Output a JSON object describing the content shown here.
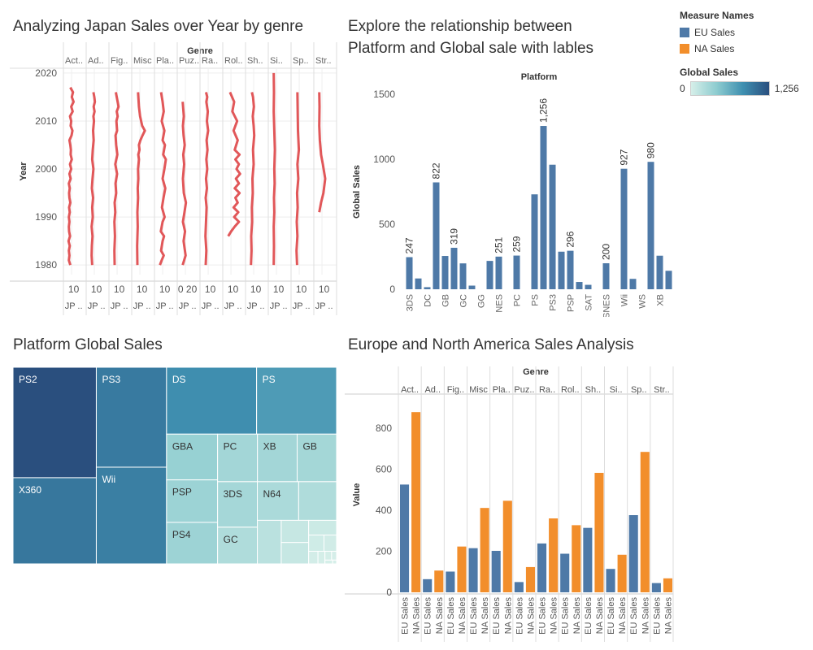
{
  "titles": {
    "japan": "Analyzing Japan Sales over Year by genre",
    "platform_line1": "Explore the relationship between",
    "platform_line2": "Platform and  Global sale with lables",
    "treemap": "Platform Global Sales",
    "eu_na": "Europe and North America Sales Analysis"
  },
  "legend": {
    "measure_title": "Measure Names",
    "items": [
      {
        "label": "EU Sales",
        "color": "#4e79a7"
      },
      {
        "label": "NA Sales",
        "color": "#f28e2b"
      }
    ],
    "color_title": "Global Sales",
    "color_min": "0",
    "color_max": "1,256"
  },
  "chart_data": [
    {
      "id": "japan",
      "type": "line",
      "header": "Genre",
      "ylabel": "Year",
      "ylim": [
        1978,
        2021
      ],
      "yticks": [
        1980,
        1990,
        2000,
        2010,
        2020
      ],
      "line_color": "#e15759",
      "panels": [
        {
          "genre": "Act..",
          "axis": "10",
          "foot": "JP ..",
          "x": [
            1.5,
            1.0,
            1.2,
            1.0,
            1.3,
            0.9,
            1.4,
            1.1,
            1.0,
            1.2,
            1.0,
            1.3,
            1.1,
            1.5,
            1.2,
            1.1,
            1.3,
            1.0,
            1.6,
            1.2,
            1.8,
            1.4,
            2.0,
            1.6,
            1.7,
            1.5,
            1.2,
            1.9,
            2.2,
            1.6,
            1.8,
            1.4,
            2.3,
            1.8,
            2.6,
            2.0,
            2.4,
            1.5
          ],
          "y": [
            1980,
            1981,
            1982,
            1983,
            1984,
            1985,
            1986,
            1987,
            1988,
            1989,
            1990,
            1991,
            1992,
            1993,
            1994,
            1995,
            1996,
            1997,
            1998,
            1999,
            2000,
            2001,
            2002,
            2003,
            2004,
            2005,
            2006,
            2007,
            2008,
            2009,
            2010,
            2011,
            2012,
            2013,
            2014,
            2015,
            2016,
            2017
          ]
        },
        {
          "genre": "Ad..",
          "axis": "10",
          "foot": "JP ..",
          "x": [
            1.2,
            1.0,
            1.1,
            1.3,
            1.0,
            1.4,
            1.2,
            1.5,
            1.1,
            1.3,
            1.6,
            1.2,
            1.4,
            1.7,
            1.5,
            1.8,
            1.6,
            2.0,
            1.7,
            2.1,
            1.9,
            1.6
          ],
          "y": [
            1980,
            1982,
            1984,
            1986,
            1988,
            1990,
            1992,
            1994,
            1996,
            1998,
            2000,
            2002,
            2004,
            2006,
            2008,
            2010,
            2011,
            2012,
            2013,
            2014,
            2015,
            2016
          ]
        },
        {
          "genre": "Fig..",
          "axis": "10",
          "foot": "JP ..",
          "x": [
            1.1,
            1.0,
            1.2,
            1.0,
            1.3,
            1.1,
            1.6,
            1.4,
            1.9,
            1.3,
            2.0,
            1.6,
            1.4,
            1.9,
            1.7,
            2.1,
            1.8,
            2.4,
            2.1,
            1.5
          ],
          "y": [
            1980,
            1983,
            1986,
            1989,
            1991,
            1993,
            1995,
            1997,
            1999,
            2001,
            2003,
            2005,
            2007,
            2008,
            2010,
            2011,
            2012,
            2013,
            2014,
            2016
          ]
        },
        {
          "genre": "Misc",
          "axis": "10",
          "foot": "JP ..",
          "x": [
            1.1,
            1.0,
            1.2,
            1.1,
            1.3,
            1.2,
            1.4,
            1.3,
            1.6,
            1.4,
            1.8,
            1.6,
            2.1,
            2.8,
            3.6,
            2.7,
            2.0,
            1.6,
            1.3
          ],
          "y": [
            1980,
            1984,
            1988,
            1991,
            1994,
            1996,
            1998,
            2000,
            2002,
            2003,
            2004,
            2005,
            2006,
            2007,
            2008,
            2009,
            2011,
            2013,
            2016
          ]
        },
        {
          "genre": "Pla..",
          "axis": "10",
          "foot": "JP ..",
          "x": [
            1.0,
            1.6,
            2.3,
            1.4,
            1.9,
            2.4,
            1.3,
            1.9,
            2.6,
            1.7,
            2.2,
            2.8,
            1.9,
            2.5,
            3.0,
            2.1,
            2.7,
            1.9,
            2.5,
            1.6,
            2.3,
            1.9,
            1.4
          ],
          "y": [
            1980,
            1981,
            1982,
            1983,
            1985,
            1986,
            1987,
            1989,
            1990,
            1992,
            1994,
            1996,
            1998,
            2000,
            2002,
            2003,
            2005,
            2006,
            2008,
            2010,
            2012,
            2014,
            2016
          ]
        },
        {
          "genre": "Puz..",
          "axis": "0 20",
          "foot": "JP ..",
          "x": [
            1.0,
            2.0,
            1.3,
            1.8,
            1.1,
            1.6,
            2.1,
            1.4,
            1.1,
            1.5,
            1.2,
            1.7,
            1.3,
            1.1,
            1.4,
            1.0
          ],
          "y": [
            1980,
            1982,
            1985,
            1987,
            1989,
            1991,
            1993,
            1995,
            1998,
            2001,
            2003,
            2005,
            2007,
            2009,
            2011,
            2014
          ]
        },
        {
          "genre": "Ra..",
          "axis": "10",
          "foot": "JP ..",
          "x": [
            1.1,
            1.3,
            1.0,
            1.2,
            1.4,
            1.1,
            1.5,
            1.2,
            1.6,
            1.3,
            1.7,
            1.4,
            1.9,
            1.5,
            1.8,
            1.3,
            1.6,
            1.2
          ],
          "y": [
            1980,
            1983,
            1986,
            1989,
            1992,
            1994,
            1996,
            1998,
            2000,
            2002,
            2004,
            2006,
            2008,
            2010,
            2012,
            2014,
            2015,
            2016
          ]
        },
        {
          "genre": "Rol..",
          "axis": "10",
          "foot": "JP ..",
          "x": [
            1.0,
            2.0,
            3.2,
            4.6,
            3.0,
            4.4,
            2.8,
            4.2,
            3.4,
            4.8,
            3.2,
            4.6,
            3.6,
            5.0,
            3.8,
            4.6,
            3.4,
            4.8,
            3.2,
            4.2,
            2.8,
            4.0,
            2.4,
            3.0,
            1.6
          ],
          "y": [
            1986,
            1987,
            1988,
            1989,
            1990,
            1991,
            1992,
            1993,
            1994,
            1995,
            1996,
            1997,
            1998,
            1999,
            2000,
            2001,
            2002,
            2003,
            2004,
            2006,
            2008,
            2010,
            2012,
            2014,
            2016
          ]
        },
        {
          "genre": "Sh..",
          "axis": "10",
          "foot": "JP ..",
          "x": [
            1.0,
            1.2,
            1.1,
            1.4,
            1.3,
            1.6,
            1.5,
            1.9,
            1.7,
            2.1,
            1.9,
            1.6,
            2.0,
            1.7,
            1.3
          ],
          "y": [
            1980,
            1983,
            1986,
            1989,
            1992,
            1995,
            1998,
            2001,
            2004,
            2007,
            2009,
            2011,
            2013,
            2015,
            2016
          ]
        },
        {
          "genre": "Si..",
          "axis": "10",
          "foot": "JP ..",
          "x": [
            1.0,
            1.1,
            1.0,
            1.2,
            1.1,
            1.3,
            1.2,
            1.4,
            1.2,
            1.0,
            1.1,
            1.0
          ],
          "y": [
            1980,
            1984,
            1988,
            1991,
            1994,
            1997,
            2000,
            2004,
            2008,
            2012,
            2016,
            2020
          ]
        },
        {
          "genre": "Sp..",
          "axis": "10",
          "foot": "JP ..",
          "x": [
            1.2,
            1.0,
            1.3,
            1.1,
            1.4,
            1.2,
            1.6,
            1.3,
            1.8,
            1.5,
            1.3
          ],
          "y": [
            1980,
            1983,
            1986,
            1989,
            1992,
            1995,
            1998,
            2001,
            2004,
            2008,
            2016
          ]
        },
        {
          "genre": "Str..",
          "axis": "10",
          "foot": "JP ..",
          "x": [
            1.0,
            1.6,
            2.4,
            3.0,
            2.2,
            1.6,
            1.2,
            1.0,
            1.1,
            1.0
          ],
          "y": [
            1991,
            1993,
            1995,
            1998,
            2001,
            2003,
            2006,
            2009,
            2013,
            2016
          ]
        }
      ]
    },
    {
      "id": "platform",
      "type": "bar",
      "header": "Platform",
      "ylabel": "Global Sales",
      "ylim": [
        0,
        1500
      ],
      "yticks": [
        0,
        500,
        1000,
        1500
      ],
      "bar_color": "#4e79a7",
      "bars": [
        {
          "platform": "3DS",
          "value": 247,
          "show_label": true,
          "label": "247",
          "axis_label": true
        },
        {
          "platform": "",
          "value": 83,
          "show_label": false,
          "label": "",
          "axis_label": false
        },
        {
          "platform": "DC",
          "value": 16,
          "show_label": false,
          "label": "",
          "axis_label": true
        },
        {
          "platform": "",
          "value": 822,
          "show_label": true,
          "label": "822",
          "axis_label": false
        },
        {
          "platform": "GB",
          "value": 256,
          "show_label": false,
          "label": "",
          "axis_label": true
        },
        {
          "platform": "",
          "value": 319,
          "show_label": true,
          "label": "319",
          "axis_label": false
        },
        {
          "platform": "GC",
          "value": 199,
          "show_label": false,
          "label": "",
          "axis_label": true
        },
        {
          "platform": "",
          "value": 28,
          "show_label": false,
          "label": "",
          "axis_label": false
        },
        {
          "platform": "GG",
          "value": 0,
          "show_label": false,
          "label": "",
          "axis_label": true
        },
        {
          "platform": "",
          "value": 218,
          "show_label": false,
          "label": "",
          "axis_label": false
        },
        {
          "platform": "NES",
          "value": 251,
          "show_label": true,
          "label": "251",
          "axis_label": true
        },
        {
          "platform": "",
          "value": 0,
          "show_label": false,
          "label": "",
          "axis_label": false
        },
        {
          "platform": "PC",
          "value": 259,
          "show_label": true,
          "label": "259",
          "axis_label": true
        },
        {
          "platform": "",
          "value": 0,
          "show_label": false,
          "label": "",
          "axis_label": false
        },
        {
          "platform": "PS",
          "value": 730,
          "show_label": false,
          "label": "",
          "axis_label": true
        },
        {
          "platform": "",
          "value": 1256,
          "show_label": true,
          "label": "1,256",
          "axis_label": false
        },
        {
          "platform": "PS3",
          "value": 958,
          "show_label": false,
          "label": "",
          "axis_label": true
        },
        {
          "platform": "",
          "value": 289,
          "show_label": false,
          "label": "",
          "axis_label": false
        },
        {
          "platform": "PSP",
          "value": 296,
          "show_label": true,
          "label": "296",
          "axis_label": true
        },
        {
          "platform": "",
          "value": 56,
          "show_label": false,
          "label": "",
          "axis_label": false
        },
        {
          "platform": "SAT",
          "value": 34,
          "show_label": false,
          "label": "",
          "axis_label": true
        },
        {
          "platform": "",
          "value": 0,
          "show_label": false,
          "label": "",
          "axis_label": false
        },
        {
          "platform": "SNES",
          "value": 200,
          "show_label": true,
          "label": "200",
          "axis_label": true
        },
        {
          "platform": "",
          "value": 0,
          "show_label": false,
          "label": "",
          "axis_label": false
        },
        {
          "platform": "Wii",
          "value": 927,
          "show_label": true,
          "label": "927",
          "axis_label": true
        },
        {
          "platform": "",
          "value": 80,
          "show_label": false,
          "label": "",
          "axis_label": false
        },
        {
          "platform": "WS",
          "value": 0,
          "show_label": false,
          "label": "",
          "axis_label": true
        },
        {
          "platform": "",
          "value": 980,
          "show_label": true,
          "label": "980",
          "axis_label": false
        },
        {
          "platform": "XB",
          "value": 258,
          "show_label": false,
          "label": "",
          "axis_label": true
        },
        {
          "platform": "",
          "value": 142,
          "show_label": false,
          "label": "",
          "axis_label": false
        }
      ]
    },
    {
      "id": "treemap",
      "type": "treemap",
      "tiles": [
        {
          "label": "PS2",
          "value": 1256
        },
        {
          "label": "X360",
          "value": 980
        },
        {
          "label": "PS3",
          "value": 958
        },
        {
          "label": "Wii",
          "value": 927
        },
        {
          "label": "DS",
          "value": 822
        },
        {
          "label": "PS",
          "value": 730
        },
        {
          "label": "GBA",
          "value": 319
        },
        {
          "label": "PSP",
          "value": 296
        },
        {
          "label": "PS4",
          "value": 289
        },
        {
          "label": "PC",
          "value": 259
        },
        {
          "label": "XB",
          "value": 258
        },
        {
          "label": "GB",
          "value": 256
        },
        {
          "label": "3DS",
          "value": 247
        },
        {
          "label": "GC",
          "value": 199
        },
        {
          "label": "N64",
          "value": 218
        },
        {
          "label": "",
          "value": 200
        },
        {
          "label": "",
          "value": 142
        },
        {
          "label": "",
          "value": 83
        },
        {
          "label": "",
          "value": 80
        },
        {
          "label": "",
          "value": 56
        },
        {
          "label": "",
          "value": 34
        },
        {
          "label": "",
          "value": 28
        },
        {
          "label": "",
          "value": 16
        },
        {
          "label": "",
          "value": 12
        },
        {
          "label": "",
          "value": 8
        },
        {
          "label": "",
          "value": 6
        },
        {
          "label": "",
          "value": 4
        },
        {
          "label": "",
          "value": 2
        }
      ]
    },
    {
      "id": "eu_na",
      "type": "bar",
      "header": "Genre",
      "ylabel": "Value",
      "ylim": [
        0,
        950
      ],
      "yticks": [
        0,
        200,
        400,
        600,
        800
      ],
      "categories": [
        "Act..",
        "Ad..",
        "Fig..",
        "Misc",
        "Pla..",
        "Puz..",
        "Ra..",
        "Rol..",
        "Sh..",
        "Si..",
        "Sp..",
        "Str.."
      ],
      "series": [
        {
          "name": "EU Sales",
          "color": "#4e79a7",
          "values": [
            525,
            64,
            101,
            215,
            202,
            50,
            238,
            188,
            314,
            114,
            376,
            45
          ]
        },
        {
          "name": "NA Sales",
          "color": "#f28e2b",
          "values": [
            878,
            106,
            223,
            411,
            446,
            123,
            360,
            327,
            582,
            183,
            684,
            68
          ]
        }
      ],
      "foot_labels": [
        "EU Sales",
        "NA Sales"
      ]
    }
  ]
}
